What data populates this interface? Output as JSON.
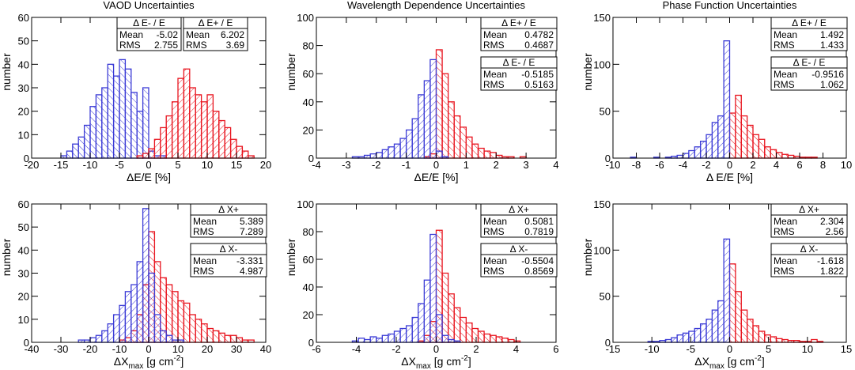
{
  "chart_data": [
    {
      "type": "histogram",
      "title": "VAOD Uncertainties",
      "ylabel": "number",
      "xlabel": [
        {
          "text": "ΔE/E [%]"
        }
      ],
      "bins": [
        -20,
        -19,
        -18,
        -17,
        -16,
        -15,
        -14,
        -13,
        -12,
        -11,
        -10,
        -9,
        -8,
        -7,
        -6,
        -5,
        -4,
        -3,
        -2,
        -1,
        0,
        1,
        2,
        3,
        4,
        5,
        6,
        7,
        8,
        9,
        10,
        11,
        12,
        13,
        14,
        15,
        16,
        17,
        18,
        19,
        20
      ],
      "xlim": [
        -20,
        20
      ],
      "xticks": [
        -20,
        -15,
        -10,
        -5,
        0,
        5,
        10,
        15,
        20
      ],
      "ylim": [
        0,
        60
      ],
      "yticks": [
        0,
        10,
        20,
        30,
        40,
        50,
        60
      ],
      "series": [
        {
          "name": "Δ E- / E",
          "color": "#3b3bd6",
          "mean_label": "Mean",
          "mean": -5.02,
          "rms_label": "RMS",
          "rms": 2.755,
          "values": [
            0,
            0,
            0,
            0,
            0,
            1,
            3,
            6,
            9,
            14,
            22,
            27,
            30,
            40,
            35,
            42,
            38,
            28,
            20,
            30,
            3,
            1,
            1,
            0,
            0,
            0,
            0,
            0,
            0,
            0,
            0,
            0,
            0,
            0,
            0,
            0,
            0,
            0,
            0,
            0
          ]
        },
        {
          "name": "Δ E+ / E",
          "color": "#e8141e",
          "mean_label": "Mean",
          "mean": 6.202,
          "rms_label": "RMS",
          "rms": 3.69,
          "values": [
            0,
            0,
            0,
            0,
            0,
            0,
            0,
            0,
            0,
            0,
            0,
            0,
            0,
            0,
            0,
            0,
            0,
            0,
            1,
            2,
            4,
            8,
            13,
            18,
            24,
            34,
            38,
            30,
            27,
            24,
            27,
            20,
            16,
            13,
            8,
            5,
            3,
            1,
            0,
            0
          ]
        }
      ]
    },
    {
      "type": "histogram",
      "title": "Wavelength Dependence Uncertainties",
      "ylabel": "number",
      "xlabel": [
        {
          "text": "ΔE/E [%]"
        }
      ],
      "bins": [
        -4,
        -3.8,
        -3.6,
        -3.4,
        -3.2,
        -3,
        -2.8,
        -2.6,
        -2.4,
        -2.2,
        -2,
        -1.8,
        -1.6,
        -1.4,
        -1.2,
        -1,
        -0.8,
        -0.6,
        -0.4,
        -0.2,
        0,
        0.2,
        0.4,
        0.6,
        0.8,
        1,
        1.2,
        1.4,
        1.6,
        1.8,
        2,
        2.2,
        2.4,
        2.6,
        2.8,
        3,
        3.2,
        3.4,
        3.6,
        3.8,
        4
      ],
      "xlim": [
        -4,
        4
      ],
      "xticks": [
        -4,
        -3,
        -2,
        -1,
        0,
        1,
        2,
        3,
        4
      ],
      "ylim": [
        0,
        100
      ],
      "yticks": [
        0,
        20,
        40,
        60,
        80,
        100
      ],
      "series": [
        {
          "name": "Δ E+ / E",
          "color": "#e8141e",
          "mean_label": "Mean",
          "mean": 0.4782,
          "rms_label": "RMS",
          "rms": 0.4687,
          "values": [
            0,
            0,
            0,
            0,
            0,
            0,
            0,
            0,
            0,
            0,
            0,
            0,
            0,
            0,
            0,
            0,
            0,
            0,
            1,
            3,
            77,
            60,
            40,
            30,
            22,
            15,
            10,
            7,
            5,
            4,
            2,
            1,
            1,
            0,
            1,
            0,
            0,
            0,
            0,
            0
          ]
        },
        {
          "name": "Δ E- / E",
          "color": "#3b3bd6",
          "mean_label": "Mean",
          "mean": -0.5185,
          "rms_label": "RMS",
          "rms": 0.5163,
          "values": [
            0,
            0,
            0,
            0,
            0,
            0,
            1,
            1,
            2,
            3,
            4,
            6,
            8,
            10,
            14,
            20,
            28,
            45,
            55,
            70,
            5,
            1,
            0,
            0,
            0,
            0,
            0,
            0,
            0,
            0,
            0,
            0,
            0,
            0,
            0,
            0,
            0,
            0,
            0,
            0
          ]
        }
      ]
    },
    {
      "type": "histogram",
      "title": "Phase Function Uncertainties",
      "ylabel": "number",
      "xlabel": [
        {
          "text": "Δ E/E [%]"
        }
      ],
      "bins": [
        -10,
        -9.5,
        -9,
        -8.5,
        -8,
        -7.5,
        -7,
        -6.5,
        -6,
        -5.5,
        -5,
        -4.5,
        -4,
        -3.5,
        -3,
        -2.5,
        -2,
        -1.5,
        -1,
        -0.5,
        0,
        0.5,
        1,
        1.5,
        2,
        2.5,
        3,
        3.5,
        4,
        4.5,
        5,
        5.5,
        6,
        6.5,
        7,
        7.5,
        8,
        8.5,
        9,
        9.5,
        10
      ],
      "xlim": [
        -10,
        10
      ],
      "xticks": [
        -10,
        -8,
        -6,
        -4,
        -2,
        0,
        2,
        4,
        6,
        8,
        10
      ],
      "ylim": [
        0,
        150
      ],
      "yticks": [
        0,
        50,
        100,
        150
      ],
      "series": [
        {
          "name": "Δ E+ / E",
          "color": "#e8141e",
          "mean_label": "Mean",
          "mean": 1.492,
          "rms_label": "RMS",
          "rms": 1.433,
          "values": [
            0,
            0,
            0,
            0,
            0,
            0,
            0,
            0,
            0,
            0,
            0,
            0,
            0,
            0,
            0,
            0,
            0,
            0,
            0,
            0,
            48,
            67,
            45,
            35,
            25,
            20,
            12,
            9,
            6,
            4,
            3,
            2,
            1,
            1,
            1,
            0,
            0,
            0,
            0,
            0
          ]
        },
        {
          "name": "Δ E- / E",
          "color": "#3b3bd6",
          "mean_label": "Mean",
          "mean": -0.9516,
          "rms_label": "RMS",
          "rms": 1.062,
          "values": [
            0,
            0,
            0,
            1,
            0,
            0,
            0,
            1,
            0,
            1,
            2,
            3,
            5,
            8,
            12,
            18,
            25,
            38,
            45,
            125,
            0,
            0,
            0,
            0,
            0,
            0,
            0,
            0,
            0,
            0,
            0,
            0,
            0,
            0,
            0,
            0,
            0,
            0,
            0,
            0
          ]
        }
      ]
    },
    {
      "type": "histogram",
      "ylabel": "number",
      "xlabel": [
        {
          "text": "ΔX"
        },
        {
          "text": "max",
          "shift": "sub"
        },
        {
          "text": " [g cm"
        },
        {
          "text": "-2",
          "shift": "sup"
        },
        {
          "text": "]"
        }
      ],
      "bins": [
        -40,
        -38,
        -36,
        -34,
        -32,
        -30,
        -28,
        -26,
        -24,
        -22,
        -20,
        -18,
        -16,
        -14,
        -12,
        -10,
        -8,
        -6,
        -4,
        -2,
        0,
        2,
        4,
        6,
        8,
        10,
        12,
        14,
        16,
        18,
        20,
        22,
        24,
        26,
        28,
        30,
        32,
        34,
        36,
        38,
        40
      ],
      "xlim": [
        -40,
        40
      ],
      "xticks": [
        -40,
        -30,
        -20,
        -10,
        0,
        10,
        20,
        30,
        40
      ],
      "ylim": [
        0,
        60
      ],
      "yticks": [
        0,
        10,
        20,
        30,
        40,
        50,
        60
      ],
      "series": [
        {
          "name": "Δ X+",
          "color": "#e8141e",
          "mean_label": "Mean",
          "mean": 5.389,
          "rms_label": "RMS",
          "rms": 7.289,
          "values": [
            0,
            0,
            0,
            0,
            0,
            0,
            0,
            0,
            0,
            0,
            0,
            0,
            0,
            0,
            0,
            1,
            2,
            5,
            12,
            25,
            48,
            35,
            28,
            25,
            22,
            18,
            17,
            12,
            10,
            8,
            6,
            5,
            4,
            3,
            3,
            2,
            1,
            1,
            0,
            0
          ]
        },
        {
          "name": "Δ X-",
          "color": "#3b3bd6",
          "mean_label": "Mean",
          "mean": -3.331,
          "rms_label": "RMS",
          "rms": 4.987,
          "values": [
            0,
            0,
            0,
            0,
            0,
            0,
            0,
            0,
            1,
            1,
            2,
            3,
            5,
            8,
            12,
            16,
            22,
            25,
            35,
            58,
            30,
            12,
            5,
            3,
            1,
            1,
            0,
            0,
            0,
            0,
            0,
            0,
            0,
            0,
            0,
            0,
            0,
            0,
            0,
            0
          ]
        }
      ]
    },
    {
      "type": "histogram",
      "ylabel": "number",
      "xlabel": [
        {
          "text": "ΔX"
        },
        {
          "text": "max",
          "shift": "sub"
        },
        {
          "text": " [g cm"
        },
        {
          "text": "-2",
          "shift": "sup"
        },
        {
          "text": "]"
        }
      ],
      "bins": [
        -6,
        -5.7,
        -5.4,
        -5.1,
        -4.8,
        -4.5,
        -4.2,
        -3.9,
        -3.6,
        -3.3,
        -3,
        -2.7,
        -2.4,
        -2.1,
        -1.8,
        -1.5,
        -1.2,
        -0.9,
        -0.6,
        -0.3,
        0,
        0.3,
        0.6,
        0.9,
        1.2,
        1.5,
        1.8,
        2.1,
        2.4,
        2.7,
        3,
        3.3,
        3.6,
        3.9,
        4.2,
        4.5,
        4.8,
        5.1,
        5.4,
        5.7,
        6
      ],
      "xlim": [
        -6,
        6
      ],
      "xticks": [
        -6,
        -4,
        -2,
        0,
        2,
        4,
        6
      ],
      "ylim": [
        0,
        100
      ],
      "yticks": [
        0,
        20,
        40,
        60,
        80,
        100
      ],
      "series": [
        {
          "name": "Δ X+",
          "color": "#e8141e",
          "mean_label": "Mean",
          "mean": 0.5081,
          "rms_label": "RMS",
          "rms": 0.7819,
          "values": [
            0,
            0,
            0,
            0,
            0,
            0,
            0,
            0,
            0,
            0,
            0,
            0,
            0,
            0,
            0,
            0,
            0,
            1,
            5,
            15,
            81,
            50,
            35,
            25,
            18,
            14,
            10,
            8,
            6,
            5,
            4,
            3,
            2,
            1,
            0,
            0,
            0,
            0,
            0,
            0
          ]
        },
        {
          "name": "Δ X-",
          "color": "#3b3bd6",
          "mean_label": "Mean",
          "mean": -0.5504,
          "rms_label": "RMS",
          "rms": 0.8569,
          "values": [
            0,
            0,
            0,
            0,
            0,
            0,
            1,
            3,
            2,
            4,
            3,
            5,
            6,
            8,
            10,
            12,
            18,
            28,
            45,
            78,
            20,
            5,
            2,
            1,
            0,
            0,
            0,
            0,
            0,
            0,
            0,
            0,
            0,
            0,
            0,
            0,
            0,
            0,
            0,
            0
          ]
        }
      ]
    },
    {
      "type": "histogram",
      "ylabel": "number",
      "xlabel": [
        {
          "text": "ΔX"
        },
        {
          "text": "max",
          "shift": "sub"
        },
        {
          "text": " [g cm"
        },
        {
          "text": "-2",
          "shift": "sup"
        },
        {
          "text": "]"
        }
      ],
      "bins": [
        -15,
        -14.25,
        -13.5,
        -12.75,
        -12,
        -11.25,
        -10.5,
        -9.75,
        -9,
        -8.25,
        -7.5,
        -6.75,
        -6,
        -5.25,
        -4.5,
        -3.75,
        -3,
        -2.25,
        -1.5,
        -0.75,
        0,
        0.75,
        1.5,
        2.25,
        3,
        3.75,
        4.5,
        5.25,
        6,
        6.75,
        7.5,
        8.25,
        9,
        9.75,
        10.5,
        11.25,
        12,
        12.75,
        13.5,
        14.25,
        15
      ],
      "xlim": [
        -15,
        15
      ],
      "xticks": [
        -15,
        -10,
        -5,
        0,
        5,
        10,
        15
      ],
      "ylim": [
        0,
        150
      ],
      "yticks": [
        0,
        50,
        100,
        150
      ],
      "series": [
        {
          "name": "Δ X+",
          "color": "#e8141e",
          "mean_label": "Mean",
          "mean": 2.304,
          "rms_label": "RMS",
          "rms": 2.56,
          "values": [
            0,
            0,
            0,
            0,
            0,
            0,
            0,
            0,
            0,
            0,
            0,
            0,
            0,
            0,
            0,
            0,
            0,
            0,
            0,
            0,
            85,
            55,
            35,
            25,
            18,
            12,
            8,
            6,
            4,
            3,
            2,
            2,
            1,
            1,
            3,
            1,
            0,
            0,
            0,
            0
          ]
        },
        {
          "name": "Δ X-",
          "color": "#3b3bd6",
          "mean_label": "Mean",
          "mean": -1.618,
          "rms_label": "RMS",
          "rms": 1.822,
          "values": [
            0,
            0,
            0,
            0,
            0,
            0,
            1,
            1,
            2,
            3,
            5,
            8,
            10,
            12,
            15,
            20,
            25,
            35,
            45,
            112,
            0,
            0,
            0,
            0,
            0,
            0,
            0,
            0,
            0,
            0,
            0,
            0,
            0,
            0,
            0,
            0,
            0,
            0,
            0,
            0
          ]
        }
      ]
    }
  ]
}
